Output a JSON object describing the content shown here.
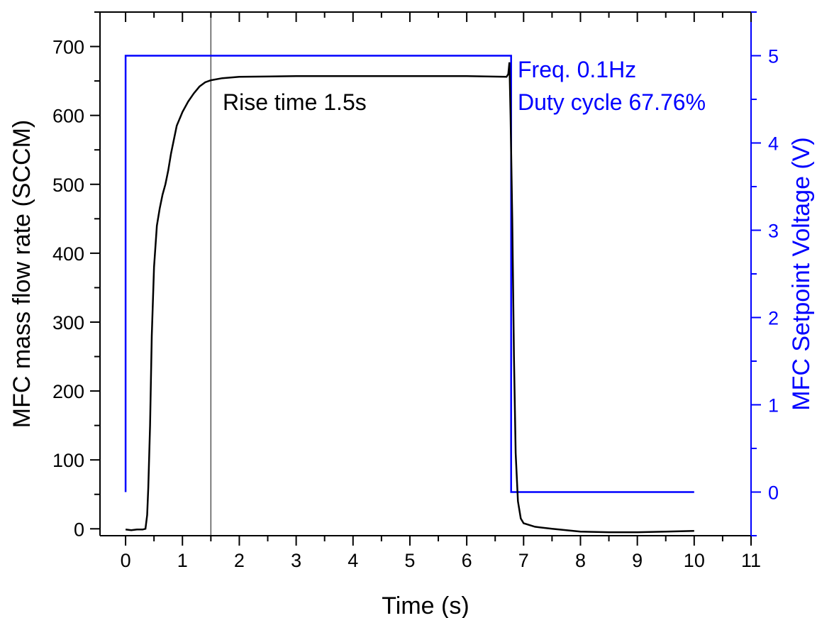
{
  "chart_data": {
    "type": "line",
    "xlabel": "Time (s)",
    "ylabel_left": "MFC mass flow rate (SCCM)",
    "ylabel_right": "MFC Setpoint Voltage (V)",
    "xlim": [
      -0.45,
      11
    ],
    "ylim_left": [
      -10,
      750
    ],
    "ylim_right": [
      -0.5,
      5.5
    ],
    "x_ticks": [
      "0",
      "1",
      "2",
      "3",
      "4",
      "5",
      "6",
      "7",
      "8",
      "9",
      "10",
      "11"
    ],
    "y_left_ticks": [
      "0",
      "100",
      "200",
      "300",
      "400",
      "500",
      "600",
      "700"
    ],
    "y_right_ticks": [
      "0",
      "1",
      "2",
      "3",
      "4",
      "5"
    ],
    "grid": false,
    "colors": {
      "flow": "#000000",
      "voltage": "#0000ff",
      "left_axis": "#000000",
      "right_axis": "#0000ff",
      "marker": "#555555"
    },
    "series": [
      {
        "axis": "left",
        "color": "#000000",
        "points": [
          [
            0,
            -1
          ],
          [
            0.1,
            -2
          ],
          [
            0.2,
            -1
          ],
          [
            0.3,
            -1
          ],
          [
            0.35,
            0
          ],
          [
            0.38,
            20
          ],
          [
            0.4,
            60
          ],
          [
            0.43,
            150
          ],
          [
            0.46,
            280
          ],
          [
            0.5,
            380
          ],
          [
            0.55,
            440
          ],
          [
            0.6,
            465
          ],
          [
            0.65,
            485
          ],
          [
            0.7,
            500
          ],
          [
            0.75,
            520
          ],
          [
            0.8,
            545
          ],
          [
            0.85,
            565
          ],
          [
            0.9,
            585
          ],
          [
            1.0,
            605
          ],
          [
            1.1,
            620
          ],
          [
            1.2,
            632
          ],
          [
            1.3,
            642
          ],
          [
            1.4,
            648
          ],
          [
            1.5,
            651
          ],
          [
            1.7,
            654
          ],
          [
            2.0,
            656
          ],
          [
            3.0,
            657
          ],
          [
            4.0,
            657
          ],
          [
            5.0,
            657
          ],
          [
            6.0,
            657
          ],
          [
            6.7,
            656
          ],
          [
            6.73,
            660
          ],
          [
            6.75,
            677
          ],
          [
            6.77,
            600
          ],
          [
            6.8,
            450
          ],
          [
            6.83,
            250
          ],
          [
            6.86,
            110
          ],
          [
            6.9,
            40
          ],
          [
            6.95,
            15
          ],
          [
            7.0,
            8
          ],
          [
            7.2,
            3
          ],
          [
            7.5,
            0
          ],
          [
            8.0,
            -4
          ],
          [
            8.5,
            -5
          ],
          [
            9.0,
            -5
          ],
          [
            9.5,
            -4
          ],
          [
            10.0,
            -3
          ]
        ]
      },
      {
        "axis": "right",
        "color": "#0000ff",
        "points": [
          [
            0,
            0
          ],
          [
            0,
            5
          ],
          [
            6.78,
            5
          ],
          [
            6.78,
            0
          ],
          [
            10,
            0
          ]
        ]
      }
    ],
    "annotations": {
      "rise_time_x": 1.5,
      "rise_time_label": "Rise time 1.5s",
      "freq_label": "Freq. 0.1Hz",
      "duty_label": "Duty cycle 67.76%"
    }
  }
}
